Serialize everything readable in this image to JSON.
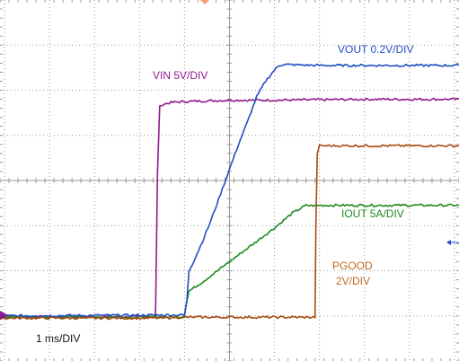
{
  "chart_data": {
    "type": "line",
    "title": "",
    "xlabel": "",
    "ylabel": "",
    "xlim": [
      -5.1,
      5.1
    ],
    "ylim": [
      -4,
      4
    ],
    "grid": true,
    "grid_color": "#9a9a9a",
    "background": "#ffffff",
    "timebase_text": "1 ms/DIV",
    "series": [
      {
        "name": "VIN 5V/DIV",
        "color": "#8e1a8e",
        "x": [
          -5.1,
          -1.65,
          -1.64,
          -1.6,
          -1.55,
          -1.5,
          -1.3,
          -1.0,
          0.0,
          1.0,
          2.0,
          3.0,
          4.0,
          5.1
        ],
        "y": [
          -3.02,
          -3.02,
          -2.8,
          0.15,
          1.63,
          1.68,
          1.73,
          1.75,
          1.78,
          1.78,
          1.79,
          1.8,
          1.8,
          1.8
        ]
      },
      {
        "name": "VOUT 0.2V/DIV",
        "color": "#1f4fc4",
        "x": [
          -5.1,
          -1.0,
          -0.95,
          -0.9,
          -0.8,
          -0.6,
          -0.4,
          -0.2,
          0.0,
          0.2,
          0.4,
          0.6,
          0.8,
          1.0,
          1.1,
          1.2,
          2.0,
          3.0,
          4.0,
          5.1
        ],
        "y": [
          -3.0,
          -2.98,
          -2.7,
          -2.0,
          -1.8,
          -1.35,
          -0.85,
          -0.3,
          0.25,
          0.8,
          1.3,
          1.85,
          2.2,
          2.45,
          2.55,
          2.57,
          2.55,
          2.55,
          2.55,
          2.55
        ]
      },
      {
        "name": "PGOOD 2V/DIV",
        "color": "#a84a10",
        "x": [
          -5.1,
          -1.7,
          -1.0,
          0.0,
          1.0,
          1.9,
          1.92,
          1.95,
          2.0,
          3.0,
          4.0,
          5.1
        ],
        "y": [
          -3.05,
          -3.05,
          -3.03,
          -3.03,
          -3.03,
          -3.03,
          -1.0,
          0.6,
          0.77,
          0.77,
          0.77,
          0.77
        ]
      },
      {
        "name": "IOUT 5A/DIV",
        "color": "#1e8a1e",
        "x": [
          -5.1,
          -1.7,
          -1.0,
          -0.97,
          -0.9,
          -0.6,
          -0.2,
          0.2,
          0.6,
          1.0,
          1.4,
          1.7,
          1.9,
          2.0,
          3.0,
          4.0,
          5.1
        ],
        "y": [
          -3.02,
          -3.03,
          -3.02,
          -2.75,
          -2.45,
          -2.25,
          -1.95,
          -1.65,
          -1.35,
          -1.05,
          -0.72,
          -0.55,
          -0.56,
          -0.55,
          -0.55,
          -0.55,
          -0.55
        ]
      }
    ],
    "labels": [
      {
        "name": "vin-label",
        "text": "VIN 5V/DIV",
        "color": "#8e1a8e"
      },
      {
        "name": "vout-label",
        "text": "VOUT 0.2V/DIV",
        "color": "#1f4fc4"
      },
      {
        "name": "iout-label",
        "text": "IOUT 5A/DIV",
        "color": "#1e8a1e"
      },
      {
        "name": "pgood-label-line1",
        "text": "PGOOD",
        "color": "#c06a1f"
      },
      {
        "name": "pgood-label-line2",
        "text": "2V/DIV",
        "color": "#c06a1f"
      }
    ]
  }
}
